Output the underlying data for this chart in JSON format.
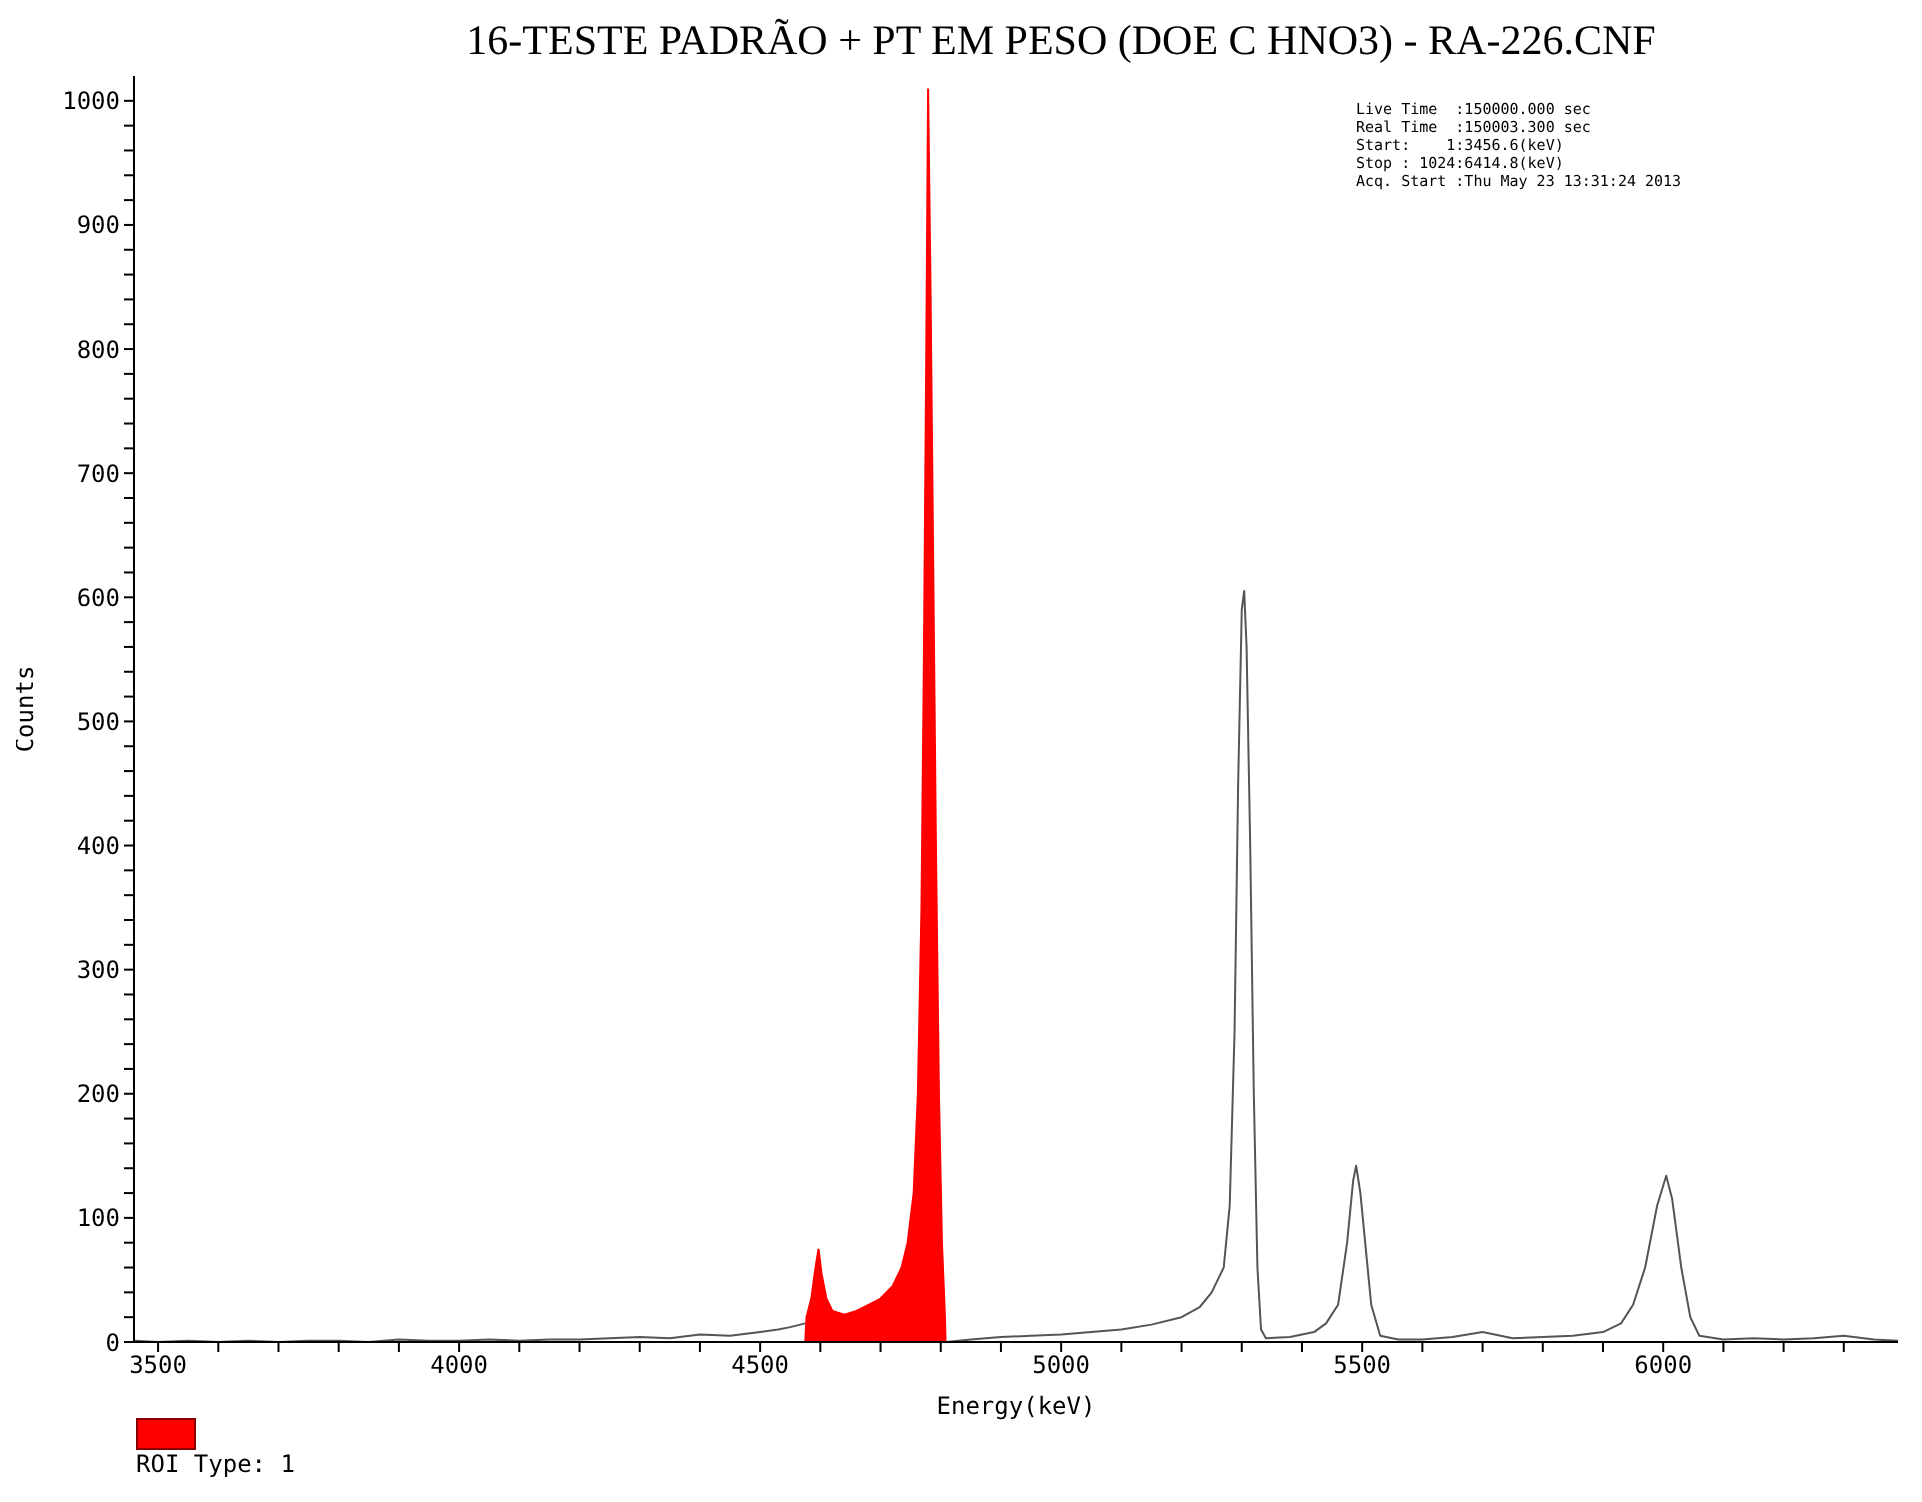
{
  "chart_data": {
    "type": "line",
    "title": "16-TESTE PADRÃO + PT EM PESO  (DOE C HNO3) - RA-226.CNF",
    "xlabel": "Energy(keV)",
    "ylabel": "Counts",
    "annotations": [
      "Live Time  :150000.000 sec",
      "Real Time  :150003.300 sec",
      "Start:    1:3456.6(keV)",
      "Stop : 1024:6414.8(keV)",
      "Acq. Start :Thu May 23 13:31:24 2013"
    ],
    "xlim": [
      3460,
      6390
    ],
    "xticks": [
      3500,
      {
        "value": 3600,
        "label": null
      },
      {
        "value": 3700,
        "label": null
      },
      {
        "value": 3800,
        "label": null
      },
      {
        "value": 3900,
        "label": null
      },
      4000,
      {
        "value": 4100,
        "label": null
      },
      {
        "value": 4200,
        "label": null
      },
      {
        "value": 4300,
        "label": null
      },
      {
        "value": 4400,
        "label": null
      },
      4500,
      {
        "value": 4600,
        "label": null
      },
      {
        "value": 4700,
        "label": null
      },
      {
        "value": 4800,
        "label": null
      },
      {
        "value": 4900,
        "label": null
      },
      5000,
      {
        "value": 5100,
        "label": null
      },
      {
        "value": 5200,
        "label": null
      },
      {
        "value": 5300,
        "label": null
      },
      {
        "value": 5400,
        "label": null
      },
      5500,
      {
        "value": 5600,
        "label": null
      },
      {
        "value": 5700,
        "label": null
      },
      {
        "value": 5800,
        "label": null
      },
      {
        "value": 5900,
        "label": null
      },
      6000,
      {
        "value": 6100,
        "label": null
      },
      {
        "value": 6200,
        "label": null
      },
      {
        "value": 6300,
        "label": null
      }
    ],
    "ylim": [
      0,
      1020
    ],
    "yticks": [
      0,
      {
        "value": 20,
        "label": null
      },
      {
        "value": 40,
        "label": null
      },
      {
        "value": 60,
        "label": null
      },
      {
        "value": 80,
        "label": null
      },
      100,
      {
        "value": 120,
        "label": null
      },
      {
        "value": 140,
        "label": null
      },
      {
        "value": 160,
        "label": null
      },
      {
        "value": 180,
        "label": null
      },
      200,
      {
        "value": 220,
        "label": null
      },
      {
        "value": 240,
        "label": null
      },
      {
        "value": 260,
        "label": null
      },
      {
        "value": 280,
        "label": null
      },
      300,
      {
        "value": 320,
        "label": null
      },
      {
        "value": 340,
        "label": null
      },
      {
        "value": 360,
        "label": null
      },
      {
        "value": 380,
        "label": null
      },
      400,
      {
        "value": 420,
        "label": null
      },
      {
        "value": 440,
        "label": null
      },
      {
        "value": 460,
        "label": null
      },
      {
        "value": 480,
        "label": null
      },
      500,
      {
        "value": 520,
        "label": null
      },
      {
        "value": 540,
        "label": null
      },
      {
        "value": 560,
        "label": null
      },
      {
        "value": 580,
        "label": null
      },
      600,
      {
        "value": 620,
        "label": null
      },
      {
        "value": 640,
        "label": null
      },
      {
        "value": 660,
        "label": null
      },
      {
        "value": 680,
        "label": null
      },
      700,
      {
        "value": 720,
        "label": null
      },
      {
        "value": 740,
        "label": null
      },
      {
        "value": 760,
        "label": null
      },
      {
        "value": 780,
        "label": null
      },
      800,
      {
        "value": 820,
        "label": null
      },
      {
        "value": 840,
        "label": null
      },
      {
        "value": 860,
        "label": null
      },
      {
        "value": 880,
        "label": null
      },
      900,
      {
        "value": 920,
        "label": null
      },
      {
        "value": 940,
        "label": null
      },
      {
        "value": 960,
        "label": null
      },
      {
        "value": 980,
        "label": null
      },
      1000
    ],
    "grid": false,
    "legend": "bottom left",
    "marker": "none",
    "line_style": "solid",
    "series": [
      {
        "color": "#555555",
        "x": [
          3460,
          3500,
          3550,
          3600,
          3650,
          3700,
          3750,
          3800,
          3850,
          3900,
          3950,
          4000,
          4050,
          4100,
          4150,
          4200,
          4250,
          4300,
          4350,
          4400,
          4450,
          4500,
          4530,
          4550,
          4575,
          4690,
          4810,
          4850,
          4900,
          4950,
          5000,
          5050,
          5100,
          5150,
          5200,
          5230,
          5250,
          5270,
          5280,
          5288,
          5294,
          5300,
          5304,
          5308,
          5314,
          5320,
          5326,
          5332,
          5340,
          5380,
          5420,
          5440,
          5460,
          5475,
          5485,
          5490,
          5497,
          5505,
          5515,
          5530,
          5560,
          5600,
          5650,
          5700,
          5750,
          5800,
          5850,
          5900,
          5930,
          5950,
          5970,
          5990,
          6005,
          6015,
          6030,
          6045,
          6060,
          6100,
          6150,
          6200,
          6250,
          6300,
          6350,
          6390
        ],
        "values": [
          1,
          0,
          1,
          0,
          1,
          0,
          1,
          1,
          0,
          2,
          1,
          1,
          2,
          1,
          2,
          2,
          3,
          4,
          3,
          6,
          5,
          8,
          10,
          12,
          15,
          null,
          0,
          2,
          4,
          5,
          6,
          8,
          10,
          14,
          20,
          28,
          40,
          60,
          110,
          250,
          450,
          590,
          605,
          560,
          400,
          200,
          60,
          10,
          3,
          4,
          8,
          15,
          30,
          80,
          130,
          142,
          120,
          80,
          30,
          5,
          2,
          2,
          4,
          8,
          3,
          4,
          5,
          8,
          15,
          30,
          60,
          110,
          134,
          115,
          60,
          20,
          5,
          2,
          3,
          2,
          3,
          5,
          2,
          1
        ]
      },
      {
        "type": "area",
        "name": "ROI Type: 1",
        "color": "#ff0000",
        "x": [
          4575,
          4577,
          4585,
          4592,
          4597,
          4602,
          4610,
          4620,
          4640,
          4660,
          4680,
          4700,
          4720,
          4735,
          4745,
          4755,
          4762,
          4768,
          4772,
          4776,
          4779,
          4783,
          4787,
          4792,
          4797,
          4802,
          4807,
          4808
        ],
        "values": [
          0,
          20,
          35,
          60,
          75,
          55,
          35,
          25,
          22,
          25,
          30,
          35,
          45,
          60,
          80,
          120,
          200,
          350,
          550,
          800,
          1010,
          850,
          650,
          400,
          200,
          80,
          20,
          0
        ]
      }
    ]
  }
}
